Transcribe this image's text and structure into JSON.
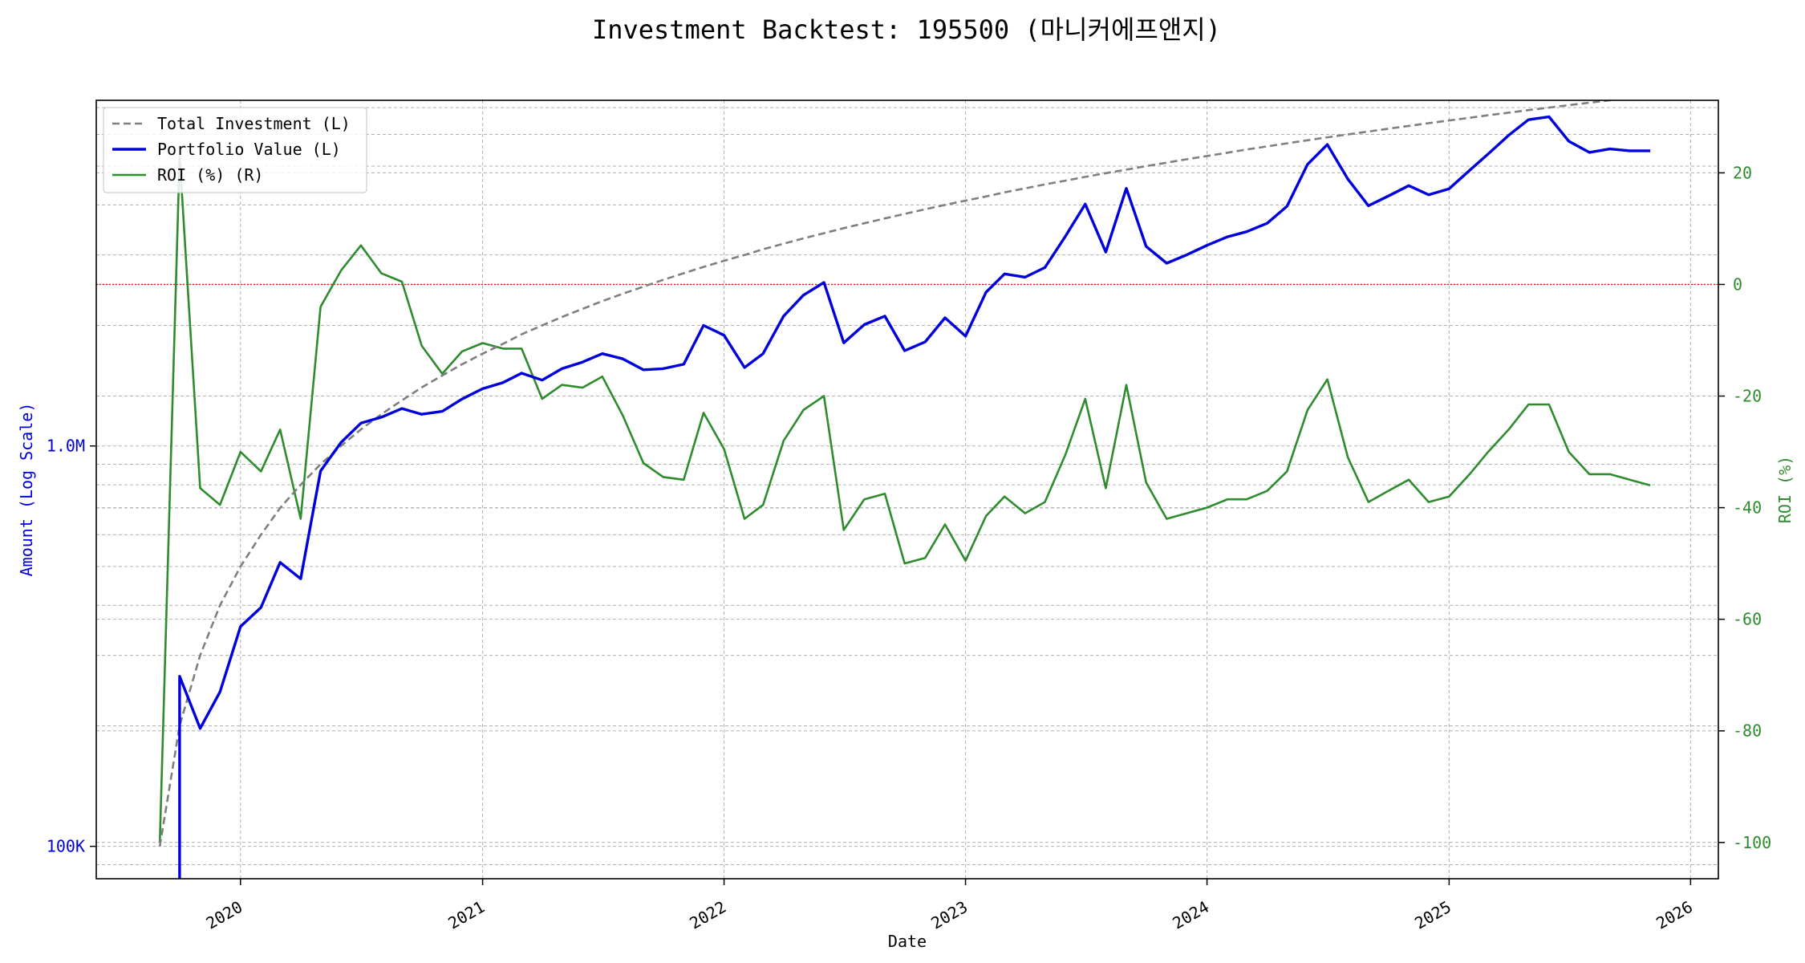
{
  "chart_data": {
    "type": "line",
    "title": "Investment Backtest: 195500 (마니커에프앤지)",
    "xlabel": "Date",
    "ylabel_left": "Amount (Log Scale)",
    "ylabel_right": "ROI (%)",
    "x_ticks": [
      "2020",
      "2021",
      "2022",
      "2023",
      "2024",
      "2025",
      "2026"
    ],
    "y_left_ticks": [
      {
        "value": 100000,
        "label": "100K"
      },
      {
        "value": 1000000,
        "label": "1.0M"
      }
    ],
    "y_right_ticks": [
      -100,
      -80,
      -60,
      -40,
      -20,
      0,
      20
    ],
    "y_left_scale": "log",
    "y_left_range": [
      83000,
      7300000
    ],
    "y_right_range": [
      -106.5,
      33
    ],
    "x_range": [
      "2019-05-28",
      "2026-02-12"
    ],
    "grid": true,
    "legend_position": "top-left",
    "reference_line": {
      "axis": "right",
      "value": 0,
      "color": "#e41a1c",
      "style": "dotted"
    },
    "colors": {
      "total_investment": "#7f7f7f",
      "portfolio_value": "#0000dd",
      "roi": "#2e8b2e",
      "left_axis_label": "#0000dd",
      "right_axis_label": "#2e8b2e"
    },
    "dates": [
      "2019-09-01",
      "2019-10-01",
      "2019-11-01",
      "2019-12-01",
      "2020-01-01",
      "2020-02-01",
      "2020-03-01",
      "2020-04-01",
      "2020-05-01",
      "2020-06-01",
      "2020-07-01",
      "2020-08-01",
      "2020-09-01",
      "2020-10-01",
      "2020-11-01",
      "2020-12-01",
      "2021-01-01",
      "2021-02-01",
      "2021-03-01",
      "2021-04-01",
      "2021-05-01",
      "2021-06-01",
      "2021-07-01",
      "2021-08-01",
      "2021-09-01",
      "2021-10-01",
      "2021-11-01",
      "2021-12-01",
      "2022-01-01",
      "2022-02-01",
      "2022-03-01",
      "2022-04-01",
      "2022-05-01",
      "2022-06-01",
      "2022-07-01",
      "2022-08-01",
      "2022-09-01",
      "2022-10-01",
      "2022-11-01",
      "2022-12-01",
      "2023-01-01",
      "2023-02-01",
      "2023-03-01",
      "2023-04-01",
      "2023-05-01",
      "2023-06-01",
      "2023-07-01",
      "2023-08-01",
      "2023-09-01",
      "2023-10-01",
      "2023-11-01",
      "2023-12-01",
      "2024-01-01",
      "2024-02-01",
      "2024-03-01",
      "2024-04-01",
      "2024-05-01",
      "2024-06-01",
      "2024-07-01",
      "2024-08-01",
      "2024-09-01",
      "2024-10-01",
      "2024-11-01",
      "2024-12-01",
      "2025-01-01",
      "2025-02-01",
      "2025-03-01",
      "2025-04-01",
      "2025-05-01",
      "2025-06-01",
      "2025-07-01",
      "2025-08-01",
      "2025-09-01",
      "2025-10-01",
      "2025-11-01"
    ],
    "series": [
      {
        "name": "Total Investment (L)",
        "axis": "left",
        "style": "dashed",
        "values": [
          100000,
          200000,
          300000,
          400000,
          500000,
          600000,
          700000,
          800000,
          900000,
          1000000,
          1100000,
          1200000,
          1300000,
          1400000,
          1500000,
          1600000,
          1700000,
          1800000,
          1900000,
          2000000,
          2100000,
          2200000,
          2300000,
          2400000,
          2500000,
          2600000,
          2700000,
          2800000,
          2900000,
          3000000,
          3100000,
          3200000,
          3300000,
          3400000,
          3500000,
          3600000,
          3700000,
          3800000,
          3900000,
          4000000,
          4100000,
          4200000,
          4300000,
          4400000,
          4500000,
          4600000,
          4700000,
          4800000,
          4900000,
          5000000,
          5100000,
          5200000,
          5300000,
          5400000,
          5500000,
          5600000,
          5700000,
          5800000,
          5900000,
          6000000,
          6100000,
          6200000,
          6300000,
          6400000,
          6500000,
          6600000,
          6700000,
          6800000,
          6900000,
          7000000,
          7100000,
          7200000,
          7300000,
          7400000,
          7500000
        ]
      },
      {
        "name": "Portfolio Value (L)",
        "axis": "left",
        "style": "solid",
        "values": [
          50000,
          266000,
          197000,
          243000,
          354000,
          395000,
          512000,
          466000,
          866000,
          1020000,
          1140000,
          1180000,
          1240000,
          1200000,
          1220000,
          1310000,
          1390000,
          1440000,
          1520000,
          1460000,
          1560000,
          1620000,
          1700000,
          1650000,
          1550000,
          1560000,
          1600000,
          2000000,
          1890000,
          1570000,
          1700000,
          2110000,
          2380000,
          2560000,
          1810000,
          2010000,
          2110000,
          1730000,
          1820000,
          2090000,
          1880000,
          2420000,
          2690000,
          2640000,
          2790000,
          3340000,
          4020000,
          3050000,
          4400000,
          3150000,
          2860000,
          3000000,
          3170000,
          3330000,
          3430000,
          3600000,
          3970000,
          5050000,
          5660000,
          4640000,
          3980000,
          4210000,
          4470000,
          4240000,
          4390000,
          4880000,
          5360000,
          5970000,
          6530000,
          6640000,
          5770000,
          5410000,
          5520000,
          5460000,
          5460000
        ]
      },
      {
        "name": "ROI (%) (R)",
        "axis": "right",
        "style": "solid",
        "values": [
          -100,
          23,
          -36.5,
          -39.5,
          -30,
          -33.5,
          -26,
          -42,
          -4,
          2.5,
          7,
          2,
          0.5,
          -11,
          -16,
          -12,
          -10.5,
          -11.5,
          -11.5,
          -20.5,
          -18,
          -18.5,
          -16.5,
          -23.5,
          -32,
          -34.5,
          -35,
          -23,
          -29.5,
          -42,
          -39.5,
          -28,
          -22.5,
          -20,
          -44,
          -38.5,
          -37.5,
          -50,
          -49,
          -43,
          -49.5,
          -41.5,
          -38,
          -41,
          -39,
          -30.5,
          -20.5,
          -36.5,
          -18,
          -35.5,
          -42,
          -41,
          -40,
          -38.5,
          -38.5,
          -37,
          -33.5,
          -22.5,
          -17,
          -31,
          -39,
          -37,
          -35,
          -39,
          -38,
          -34,
          -30,
          -26,
          -21.5,
          -21.5,
          -30,
          -34,
          -34,
          -35,
          -36
        ]
      }
    ]
  }
}
